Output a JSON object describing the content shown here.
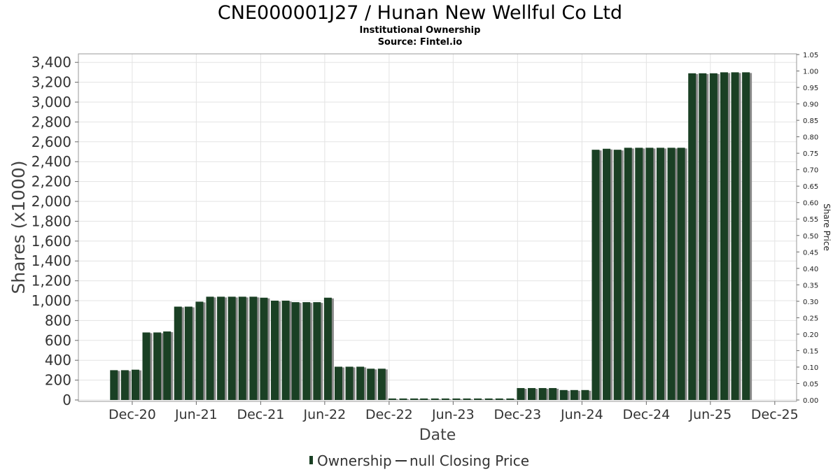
{
  "chart_data": {
    "type": "bar",
    "title": "CNE000001J27 / Hunan New Wellful Co Ltd",
    "subtitle_lines": [
      "Institutional Ownership",
      "Source: Fintel.io"
    ],
    "xlabel": "Date",
    "ylabel": "Shares (x1000)",
    "y2label": "Share Price",
    "ylim": [
      0,
      3500
    ],
    "y_ticks": [
      "0",
      "200",
      "400",
      "600",
      "800",
      "1,000",
      "1,200",
      "1,400",
      "1,600",
      "1,800",
      "2,000",
      "2,200",
      "2,400",
      "2,600",
      "2,800",
      "3,000",
      "3,200",
      "3,400"
    ],
    "y2lim": [
      0,
      1.05
    ],
    "y2_ticks": [
      "0.00",
      "0.05",
      "0.10",
      "0.15",
      "0.20",
      "0.25",
      "0.30",
      "0.35",
      "0.40",
      "0.45",
      "0.50",
      "0.55",
      "0.60",
      "0.65",
      "0.70",
      "0.75",
      "0.80",
      "0.85",
      "0.90",
      "0.95",
      "1.00",
      "1.05"
    ],
    "xlim": [
      "2020-07-01",
      "2026-02-01"
    ],
    "x_ticks": [
      {
        "date": "2020-12-01",
        "label": "Dec-20"
      },
      {
        "date": "2021-06-01",
        "label": "Jun-21"
      },
      {
        "date": "2021-12-01",
        "label": "Dec-21"
      },
      {
        "date": "2022-06-01",
        "label": "Jun-22"
      },
      {
        "date": "2022-12-01",
        "label": "Dec-22"
      },
      {
        "date": "2023-06-01",
        "label": "Jun-23"
      },
      {
        "date": "2023-12-01",
        "label": "Dec-23"
      },
      {
        "date": "2024-06-01",
        "label": "Jun-24"
      },
      {
        "date": "2024-12-01",
        "label": "Dec-24"
      },
      {
        "date": "2025-06-01",
        "label": "Jun-25"
      },
      {
        "date": "2025-12-01",
        "label": "Dec-25"
      }
    ],
    "grid": true,
    "series": [
      {
        "name": "Ownership",
        "color": "#1a4024",
        "shadow_color": "#8a8a8a",
        "points": [
          {
            "x": "2020-10-10",
            "y": 300
          },
          {
            "x": "2020-11-10",
            "y": 300
          },
          {
            "x": "2020-12-10",
            "y": 305
          },
          {
            "x": "2021-01-10",
            "y": 680
          },
          {
            "x": "2021-02-10",
            "y": 680
          },
          {
            "x": "2021-03-10",
            "y": 690
          },
          {
            "x": "2021-04-10",
            "y": 940
          },
          {
            "x": "2021-05-10",
            "y": 940
          },
          {
            "x": "2021-06-10",
            "y": 990
          },
          {
            "x": "2021-07-10",
            "y": 1040
          },
          {
            "x": "2021-08-10",
            "y": 1040
          },
          {
            "x": "2021-09-10",
            "y": 1040
          },
          {
            "x": "2021-10-10",
            "y": 1040
          },
          {
            "x": "2021-11-10",
            "y": 1040
          },
          {
            "x": "2021-12-10",
            "y": 1030
          },
          {
            "x": "2022-01-10",
            "y": 1000
          },
          {
            "x": "2022-02-10",
            "y": 1000
          },
          {
            "x": "2022-03-10",
            "y": 985
          },
          {
            "x": "2022-04-10",
            "y": 985
          },
          {
            "x": "2022-05-10",
            "y": 985
          },
          {
            "x": "2022-06-10",
            "y": 1030
          },
          {
            "x": "2022-07-10",
            "y": 335
          },
          {
            "x": "2022-08-10",
            "y": 335
          },
          {
            "x": "2022-09-10",
            "y": 335
          },
          {
            "x": "2022-10-10",
            "y": 315
          },
          {
            "x": "2022-11-10",
            "y": 315
          },
          {
            "x": "2022-12-10",
            "y": 15
          },
          {
            "x": "2023-01-10",
            "y": 15
          },
          {
            "x": "2023-02-10",
            "y": 15
          },
          {
            "x": "2023-03-10",
            "y": 15
          },
          {
            "x": "2023-04-10",
            "y": 15
          },
          {
            "x": "2023-05-10",
            "y": 15
          },
          {
            "x": "2023-06-10",
            "y": 15
          },
          {
            "x": "2023-07-10",
            "y": 15
          },
          {
            "x": "2023-08-10",
            "y": 15
          },
          {
            "x": "2023-09-10",
            "y": 15
          },
          {
            "x": "2023-10-10",
            "y": 15
          },
          {
            "x": "2023-11-10",
            "y": 15
          },
          {
            "x": "2023-12-10",
            "y": 120
          },
          {
            "x": "2024-01-10",
            "y": 120
          },
          {
            "x": "2024-02-10",
            "y": 120
          },
          {
            "x": "2024-03-10",
            "y": 120
          },
          {
            "x": "2024-04-10",
            "y": 100
          },
          {
            "x": "2024-05-10",
            "y": 100
          },
          {
            "x": "2024-06-10",
            "y": 100
          },
          {
            "x": "2024-07-10",
            "y": 2520
          },
          {
            "x": "2024-08-10",
            "y": 2530
          },
          {
            "x": "2024-09-10",
            "y": 2520
          },
          {
            "x": "2024-10-10",
            "y": 2540
          },
          {
            "x": "2024-11-10",
            "y": 2540
          },
          {
            "x": "2024-12-10",
            "y": 2540
          },
          {
            "x": "2025-01-10",
            "y": 2540
          },
          {
            "x": "2025-02-10",
            "y": 2540
          },
          {
            "x": "2025-03-10",
            "y": 2540
          },
          {
            "x": "2025-04-10",
            "y": 3290
          },
          {
            "x": "2025-05-10",
            "y": 3290
          },
          {
            "x": "2025-06-10",
            "y": 3290
          },
          {
            "x": "2025-07-10",
            "y": 3300
          },
          {
            "x": "2025-08-10",
            "y": 3300
          },
          {
            "x": "2025-09-10",
            "y": 3300
          }
        ]
      },
      {
        "name": "null Closing Price",
        "color": "#333333",
        "points": []
      }
    ],
    "legend": {
      "position": "bottom-center",
      "items": [
        "Ownership",
        "null Closing Price"
      ]
    }
  }
}
